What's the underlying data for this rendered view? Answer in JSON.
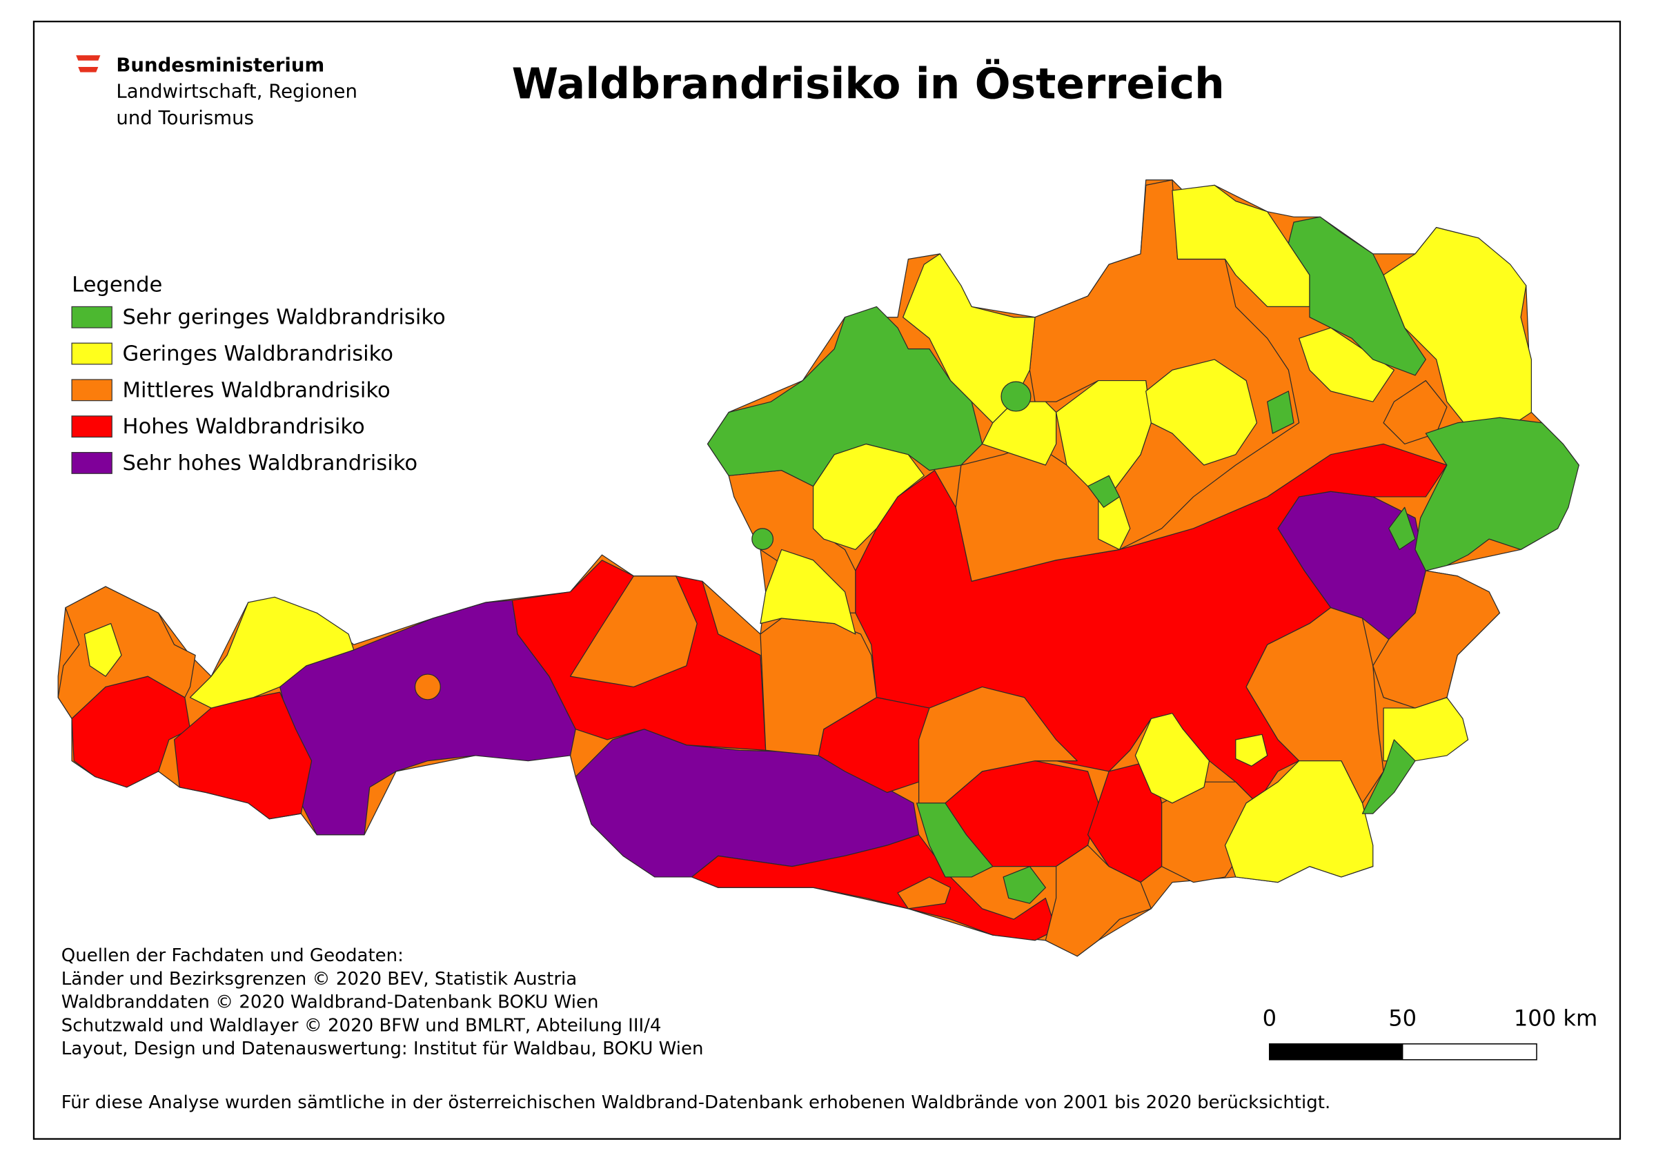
{
  "logo": {
    "lines": [
      "Bundesministerium",
      "Landwirtschaft, Regionen",
      "und Tourismus"
    ]
  },
  "title": "Waldbrandrisiko in Österreich",
  "legend": {
    "title": "Legende",
    "items": [
      {
        "label": "Sehr geringes Waldbrandrisiko",
        "color": "#4cb830"
      },
      {
        "label": "Geringes Waldbrandrisiko",
        "color": "#ffff1c"
      },
      {
        "label": "Mittleres Waldbrandrisiko",
        "color": "#fb7d0c"
      },
      {
        "label": "Hohes Waldbrandrisiko",
        "color": "#fe0000"
      },
      {
        "label": "Sehr hohes Waldbrandrisiko",
        "color": "#7f0099"
      }
    ]
  },
  "sources": [
    "Quellen der Fachdaten und Geodaten:",
    "Länder und Bezirksgrenzen © 2020 BEV, Statistik Austria",
    "Waldbranddaten © 2020 Waldbrand-Datenbank BOKU Wien",
    "Schutzwald und Waldlayer © 2020 BFW und BMLRT, Abteilung III/4",
    "Layout, Design und Datenauswertung: Institut für Waldbau, BOKU Wien"
  ],
  "scale_bar": {
    "labels": [
      "0",
      "50",
      "100 km"
    ]
  },
  "footnote": "Für diese Analyse wurden sämtliche in der österreichischen Waldbrand-Datenbank erhobenen Waldbrände von 2001 bis 2020 berücksichtigt."
}
